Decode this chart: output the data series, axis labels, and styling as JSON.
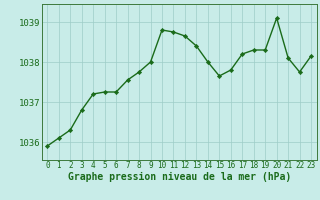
{
  "x": [
    0,
    1,
    2,
    3,
    4,
    5,
    6,
    7,
    8,
    9,
    10,
    11,
    12,
    13,
    14,
    15,
    16,
    17,
    18,
    19,
    20,
    21,
    22,
    23
  ],
  "y": [
    1035.9,
    1036.1,
    1036.3,
    1036.8,
    1037.2,
    1037.25,
    1037.25,
    1037.55,
    1037.75,
    1038.0,
    1038.8,
    1038.75,
    1038.65,
    1038.4,
    1038.0,
    1037.65,
    1037.8,
    1038.2,
    1038.3,
    1038.3,
    1039.1,
    1038.1,
    1037.75,
    1038.15
  ],
  "line_color": "#1a6b1a",
  "marker": "D",
  "marker_size": 2.2,
  "bg_color": "#c8ece8",
  "grid_color": "#9ecdc7",
  "xlabel": "Graphe pression niveau de la mer (hPa)",
  "xlabel_fontsize": 7.0,
  "xlabel_color": "#1a6b1a",
  "ytick_labels": [
    1036,
    1037,
    1038,
    1039
  ],
  "ylim": [
    1035.55,
    1039.45
  ],
  "xlim": [
    -0.5,
    23.5
  ],
  "xtick_fontsize": 5.5,
  "ytick_fontsize": 6.5,
  "spine_color": "#3d7a3d",
  "line_width": 1.0
}
